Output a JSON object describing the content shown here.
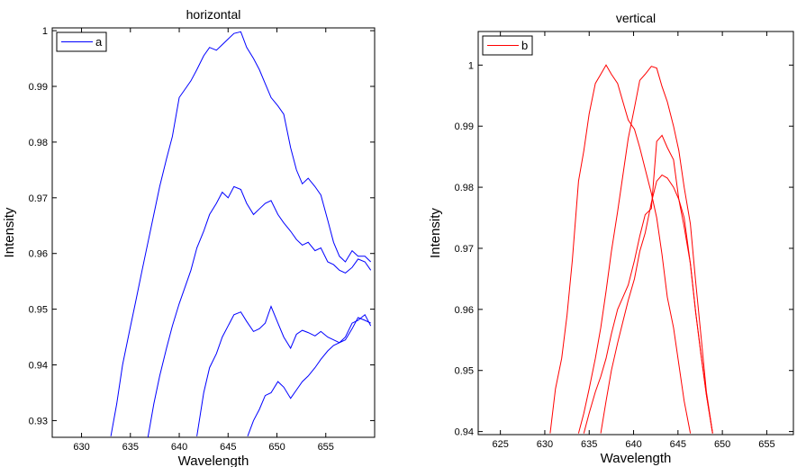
{
  "chart_data": [
    {
      "type": "line",
      "title": "horizontal",
      "xlabel": "Wavelength",
      "ylabel": "Intensity",
      "xlim": [
        627,
        660
      ],
      "ylim": [
        0.927,
        1.0005
      ],
      "xticks": [
        630,
        635,
        640,
        645,
        650,
        655
      ],
      "yticks": [
        0.93,
        0.94,
        0.95,
        0.96,
        0.97,
        0.98,
        0.99,
        1
      ],
      "ytick_labels": [
        "0.93",
        "0.94",
        "0.95",
        "0.96",
        "0.97",
        "0.98",
        "0.99",
        "1"
      ],
      "grid": false,
      "legend": {
        "position": "top-left",
        "entries": [
          "a"
        ]
      },
      "color": "#0000ff",
      "series": [
        {
          "name": "a",
          "x": [
            633.0,
            633.6,
            634.2,
            634.9,
            635.5,
            636.2,
            636.8,
            637.4,
            638.0,
            638.7,
            639.3,
            640.0,
            640.6,
            641.2,
            641.8,
            642.5,
            643.1,
            643.8,
            644.4,
            645.0,
            645.6,
            646.3,
            646.9,
            647.6,
            648.2,
            648.8,
            649.4,
            650.1,
            650.7,
            651.4,
            652.0,
            652.6,
            653.2,
            653.9,
            654.5,
            655.2,
            655.8,
            656.4,
            657.0,
            657.7,
            658.3,
            659.0,
            659.6
          ],
          "y": [
            0.9272,
            0.933,
            0.94,
            0.946,
            0.951,
            0.957,
            0.962,
            0.967,
            0.972,
            0.977,
            0.981,
            0.988,
            0.9895,
            0.991,
            0.993,
            0.9955,
            0.997,
            0.9965,
            0.9975,
            0.9985,
            0.9995,
            0.9998,
            0.997,
            0.995,
            0.993,
            0.9905,
            0.988,
            0.9865,
            0.985,
            0.979,
            0.975,
            0.9725,
            0.9735,
            0.972,
            0.9705,
            0.966,
            0.962,
            0.9595,
            0.9585,
            0.9605,
            0.9595,
            0.9595,
            0.9585
          ]
        },
        {
          "name": "",
          "x": [
            636.8,
            637.4,
            638.0,
            638.7,
            639.3,
            640.0,
            640.6,
            641.2,
            641.8,
            642.5,
            643.1,
            643.8,
            644.4,
            645.0,
            645.6,
            646.3,
            646.9,
            647.6,
            648.2,
            648.8,
            649.4,
            650.1,
            650.7,
            651.4,
            652.0,
            652.6,
            653.2,
            653.9,
            654.5,
            655.2,
            655.8,
            656.4,
            657.0,
            657.7,
            658.3,
            659.0,
            659.6
          ],
          "y": [
            0.927,
            0.933,
            0.938,
            0.943,
            0.947,
            0.951,
            0.954,
            0.957,
            0.961,
            0.964,
            0.967,
            0.969,
            0.971,
            0.97,
            0.972,
            0.9715,
            0.969,
            0.967,
            0.968,
            0.969,
            0.9695,
            0.967,
            0.9655,
            0.964,
            0.9625,
            0.9615,
            0.962,
            0.9605,
            0.961,
            0.9585,
            0.958,
            0.957,
            0.9565,
            0.9575,
            0.959,
            0.9585,
            0.957
          ]
        },
        {
          "name": "",
          "x": [
            641.8,
            642.5,
            643.1,
            643.8,
            644.4,
            645.0,
            645.6,
            646.3,
            646.9,
            647.6,
            648.2,
            648.8,
            649.4,
            650.1,
            650.7,
            651.4,
            652.0,
            652.6,
            653.2,
            653.9,
            654.5,
            655.2,
            655.8,
            656.4,
            657.0,
            657.7,
            658.3,
            659.0,
            659.6
          ],
          "y": [
            0.9272,
            0.935,
            0.9395,
            0.942,
            0.945,
            0.947,
            0.949,
            0.9495,
            0.9478,
            0.946,
            0.9465,
            0.9475,
            0.9505,
            0.9475,
            0.945,
            0.943,
            0.9455,
            0.9462,
            0.9458,
            0.9452,
            0.946,
            0.945,
            0.9445,
            0.944,
            0.945,
            0.9475,
            0.948,
            0.949,
            0.947
          ]
        },
        {
          "name": "",
          "x": [
            647.0,
            647.6,
            648.2,
            648.8,
            649.4,
            650.1,
            650.7,
            651.4,
            652.0,
            652.6,
            653.2,
            653.9,
            654.5,
            655.2,
            655.8,
            656.4,
            657.0,
            657.7,
            658.3,
            659.0,
            659.6
          ],
          "y": [
            0.9272,
            0.93,
            0.932,
            0.9345,
            0.935,
            0.937,
            0.936,
            0.934,
            0.9355,
            0.937,
            0.938,
            0.9395,
            0.941,
            0.9425,
            0.9435,
            0.944,
            0.9445,
            0.9465,
            0.9485,
            0.948,
            0.9475
          ]
        }
      ]
    },
    {
      "type": "line",
      "title": "vertical",
      "xlabel": "Wavelength",
      "ylabel": "Intensity",
      "xlim": [
        622.5,
        658
      ],
      "ylim": [
        0.9395,
        1.0055
      ],
      "xticks": [
        625,
        630,
        635,
        640,
        645,
        650,
        655
      ],
      "yticks": [
        0.94,
        0.95,
        0.96,
        0.97,
        0.98,
        0.99,
        1
      ],
      "ytick_labels": [
        "0.94",
        "0.95",
        "0.96",
        "0.97",
        "0.98",
        "0.99",
        "1"
      ],
      "grid": false,
      "legend": {
        "position": "top-left",
        "entries": [
          "b"
        ]
      },
      "color": "#ff0000",
      "series": [
        {
          "name": "b",
          "x": [
            630.6,
            631.2,
            631.9,
            632.5,
            633.1,
            633.8,
            634.4,
            635.0,
            635.7,
            636.3,
            636.9,
            637.5,
            638.2,
            638.8,
            639.4,
            640.1,
            640.7,
            641.3,
            642.0,
            642.6,
            643.2,
            643.8,
            644.5,
            645.1,
            645.7,
            646.4
          ],
          "y": [
            0.9397,
            0.947,
            0.952,
            0.959,
            0.968,
            0.981,
            0.986,
            0.992,
            0.997,
            0.9985,
            1.0,
            0.9985,
            0.997,
            0.994,
            0.991,
            0.9895,
            0.9865,
            0.983,
            0.979,
            0.975,
            0.969,
            0.962,
            0.957,
            0.951,
            0.945,
            0.9397
          ]
        },
        {
          "name": "",
          "x": [
            633.8,
            634.4,
            635.0,
            635.7,
            636.3,
            636.9,
            637.5,
            638.2,
            638.8,
            639.4,
            640.1,
            640.7,
            641.3,
            642.0,
            642.6,
            643.2,
            643.8,
            644.5,
            645.1,
            645.7,
            646.4,
            647.0,
            647.6,
            648.2,
            648.9
          ],
          "y": [
            0.9397,
            0.943,
            0.947,
            0.952,
            0.957,
            0.963,
            0.9695,
            0.976,
            0.982,
            0.988,
            0.993,
            0.9975,
            0.9985,
            0.9998,
            0.9995,
            0.9965,
            0.994,
            0.99,
            0.986,
            0.98,
            0.974,
            0.9645,
            0.9555,
            0.9465,
            0.9397
          ]
        },
        {
          "name": "",
          "x": [
            634.4,
            635.0,
            635.7,
            636.3,
            636.9,
            637.5,
            638.2,
            638.8,
            639.4,
            640.1,
            640.7,
            641.3,
            642.0,
            642.6,
            643.2,
            643.8,
            644.5,
            645.1,
            645.7,
            646.4,
            647.0,
            647.6,
            648.2,
            648.9
          ],
          "y": [
            0.9397,
            0.943,
            0.9465,
            0.949,
            0.952,
            0.956,
            0.96,
            0.962,
            0.964,
            0.968,
            0.972,
            0.9755,
            0.9765,
            0.9875,
            0.9885,
            0.9865,
            0.9845,
            0.978,
            0.975,
            0.9675,
            0.9595,
            0.9525,
            0.946,
            0.9397
          ]
        },
        {
          "name": "",
          "x": [
            636.3,
            636.9,
            637.5,
            638.2,
            638.8,
            639.4,
            640.1,
            640.7,
            641.3,
            642.0,
            642.6,
            643.2,
            643.8,
            644.5,
            645.1,
            645.7,
            646.4,
            647.0,
            647.6,
            648.2,
            648.9
          ],
          "y": [
            0.9397,
            0.945,
            0.95,
            0.9545,
            0.958,
            0.9615,
            0.965,
            0.9695,
            0.9725,
            0.9775,
            0.981,
            0.982,
            0.9815,
            0.98,
            0.978,
            0.9735,
            0.9675,
            0.9595,
            0.9525,
            0.946,
            0.9397
          ]
        }
      ]
    }
  ]
}
